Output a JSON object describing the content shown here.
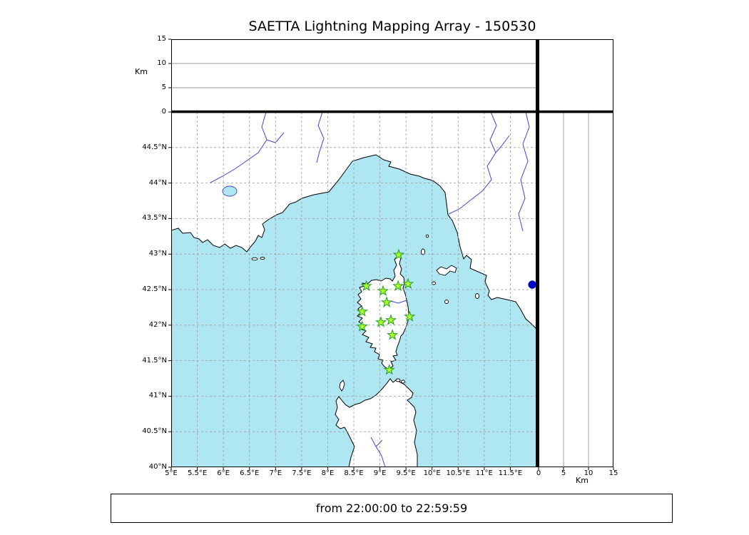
{
  "title": "SAETTA Lightning Mapping Array - 150530",
  "footer": {
    "time_range": "from 22:00:00 to 22:59:59"
  },
  "axes": {
    "left_alt_unit": "Km",
    "bottom_alt_unit": "Km",
    "alt_ticks": {
      "values": [
        0,
        5,
        10,
        15
      ],
      "labels": [
        "0",
        "5",
        "10",
        "15"
      ]
    },
    "lat_ticks": {
      "values": [
        40,
        40.5,
        41,
        41.5,
        42,
        42.5,
        43,
        43.5,
        44,
        44.5
      ],
      "labels": [
        "40°N",
        "40.5°N",
        "41°N",
        "41.5°N",
        "42°N",
        "42.5°N",
        "43°N",
        "43.5°N",
        "44°N",
        "44.5°N"
      ]
    },
    "lon_ticks": {
      "values": [
        5,
        5.5,
        6,
        6.5,
        7,
        7.5,
        8,
        8.5,
        9,
        9.5,
        10,
        10.5,
        11,
        11.5
      ],
      "labels": [
        "5°E",
        "5.5°E",
        "6°E",
        "6.5°E",
        "7°E",
        "7.5°E",
        "8°E",
        "8.5°E",
        "9°E",
        "9.5°E",
        "10°E",
        "10.5°E",
        "11°E",
        "11.5°E"
      ]
    }
  },
  "colors": {
    "water": "#aee6f2",
    "land": "#ffffff",
    "coastline": "#000000",
    "river": "#4444cc",
    "grid": "#999999",
    "station_fill": "#adff2f",
    "station_edge": "#1f9e1f",
    "event_fill": "#0000cd"
  },
  "chart_data": {
    "type": "scatter",
    "title": "SAETTA Lightning Mapping Array - 150530",
    "time_window": "from 22:00:00 to 22:59:59",
    "map_extent": {
      "lon_range_deg_e": [
        5,
        12
      ],
      "lat_range_deg_n": [
        40,
        45
      ]
    },
    "altitude_axis": {
      "label": "Km",
      "range_km": [
        0,
        15
      ],
      "ticks": [
        0,
        5,
        10,
        15
      ]
    },
    "grid": "dashed, 0.5 degree spacing",
    "legend_position": "none",
    "series": [
      {
        "name": "lma-stations",
        "marker": "star",
        "color": "#adff2f",
        "points_lon_lat": [
          [
            9.36,
            42.99
          ],
          [
            8.74,
            42.55
          ],
          [
            9.06,
            42.48
          ],
          [
            9.35,
            42.55
          ],
          [
            9.54,
            42.58
          ],
          [
            9.13,
            42.32
          ],
          [
            8.66,
            42.19
          ],
          [
            9.02,
            42.04
          ],
          [
            9.21,
            42.07
          ],
          [
            9.57,
            42.12
          ],
          [
            8.66,
            41.98
          ],
          [
            9.24,
            41.86
          ],
          [
            9.18,
            41.37
          ]
        ]
      },
      {
        "name": "source-event",
        "marker": "circle",
        "color": "#0000cd",
        "points_lon_lat": [
          [
            11.92,
            42.57
          ]
        ]
      }
    ],
    "panels": {
      "top": {
        "axis": "altitude vs longitude",
        "ylabel": "Km",
        "ylim": [
          0,
          15
        ],
        "yticks": [
          0,
          5,
          10,
          15
        ],
        "points": []
      },
      "right": {
        "axis": "altitude vs latitude",
        "xlabel": "Km",
        "xlim": [
          0,
          15
        ],
        "xticks": [
          0,
          5,
          10,
          15
        ],
        "points": []
      }
    }
  }
}
